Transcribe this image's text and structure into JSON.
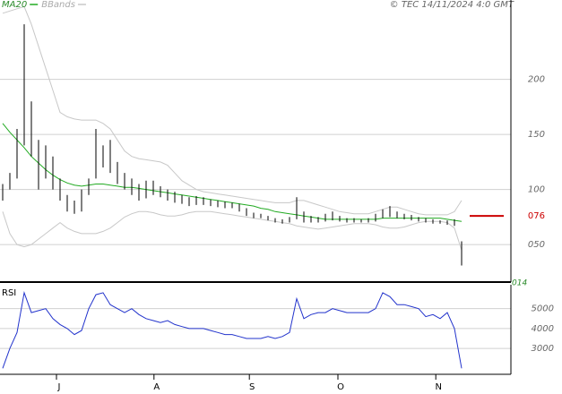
{
  "chart_data": [
    {
      "type": "hlbar",
      "copyright": "© TEC 14/11/2024 4:0 GMT",
      "x": [
        0,
        1,
        2,
        3,
        4,
        5,
        6,
        7,
        8,
        9,
        10,
        11,
        12,
        13,
        14,
        15,
        16,
        17,
        18,
        19,
        20,
        21,
        22,
        23,
        24,
        25,
        26,
        27,
        28,
        29,
        30,
        31,
        32,
        33,
        34,
        35,
        36,
        37,
        38,
        39,
        40,
        41,
        42,
        43,
        44,
        45,
        46,
        47,
        48,
        49,
        50,
        51,
        52,
        53,
        54,
        55,
        56,
        57,
        58,
        59,
        60,
        61,
        62,
        63,
        64
      ],
      "xlim": [
        -0.375,
        70.875
      ],
      "high": [
        1.05,
        1.15,
        1.55,
        2.5,
        1.8,
        1.45,
        1.4,
        1.3,
        1.1,
        0.95,
        0.9,
        1.0,
        1.1,
        1.55,
        1.4,
        1.45,
        1.25,
        1.15,
        1.1,
        1.05,
        1.08,
        1.08,
        1.03,
        1.0,
        0.98,
        0.95,
        0.93,
        0.94,
        0.93,
        0.91,
        0.9,
        0.89,
        0.88,
        0.87,
        0.83,
        0.79,
        0.78,
        0.76,
        0.74,
        0.73,
        0.75,
        0.93,
        0.8,
        0.76,
        0.75,
        0.78,
        0.8,
        0.76,
        0.74,
        0.74,
        0.73,
        0.74,
        0.78,
        0.82,
        0.85,
        0.8,
        0.78,
        0.77,
        0.75,
        0.74,
        0.73,
        0.72,
        0.72,
        0.73,
        0.53
      ],
      "low": [
        0.9,
        1.0,
        1.1,
        1.4,
        1.3,
        1.0,
        1.1,
        1.0,
        0.9,
        0.8,
        0.78,
        0.8,
        0.95,
        1.1,
        1.2,
        1.15,
        1.05,
        1.0,
        0.95,
        0.9,
        0.92,
        0.95,
        0.93,
        0.9,
        0.88,
        0.87,
        0.85,
        0.86,
        0.86,
        0.85,
        0.84,
        0.83,
        0.83,
        0.8,
        0.76,
        0.74,
        0.74,
        0.72,
        0.7,
        0.69,
        0.7,
        0.73,
        0.7,
        0.7,
        0.7,
        0.71,
        0.72,
        0.71,
        0.7,
        0.7,
        0.7,
        0.7,
        0.71,
        0.74,
        0.75,
        0.74,
        0.73,
        0.72,
        0.71,
        0.7,
        0.69,
        0.69,
        0.68,
        0.67,
        0.31
      ],
      "bar_color": "#000000",
      "series": [
        {
          "name": "MA20",
          "color": "#22aa22",
          "values": [
            1.6,
            1.52,
            1.45,
            1.38,
            1.3,
            1.24,
            1.18,
            1.13,
            1.09,
            1.06,
            1.04,
            1.03,
            1.04,
            1.05,
            1.05,
            1.04,
            1.03,
            1.02,
            1.02,
            1.01,
            1.0,
            0.99,
            0.98,
            0.97,
            0.96,
            0.95,
            0.94,
            0.93,
            0.92,
            0.91,
            0.9,
            0.89,
            0.88,
            0.87,
            0.86,
            0.85,
            0.83,
            0.82,
            0.8,
            0.79,
            0.78,
            0.77,
            0.76,
            0.75,
            0.74,
            0.73,
            0.73,
            0.73,
            0.73,
            0.73,
            0.73,
            0.73,
            0.73,
            0.74,
            0.74,
            0.74,
            0.74,
            0.74,
            0.74,
            0.74,
            0.74,
            0.74,
            0.73,
            0.72,
            0.71
          ]
        },
        {
          "name": "BBands",
          "color": "#c8c8c8",
          "values": [
            2.6,
            2.62,
            2.64,
            2.66,
            2.5,
            2.3,
            2.1,
            1.9,
            1.7,
            1.66,
            1.64,
            1.63,
            1.63,
            1.63,
            1.6,
            1.55,
            1.45,
            1.35,
            1.3,
            1.28,
            1.27,
            1.26,
            1.25,
            1.22,
            1.15,
            1.08,
            1.04,
            1.0,
            0.98,
            0.97,
            0.96,
            0.95,
            0.94,
            0.93,
            0.92,
            0.91,
            0.9,
            0.89,
            0.88,
            0.88,
            0.88,
            0.9,
            0.9,
            0.88,
            0.86,
            0.84,
            0.82,
            0.8,
            0.79,
            0.78,
            0.78,
            0.78,
            0.8,
            0.82,
            0.84,
            0.84,
            0.82,
            0.8,
            0.78,
            0.77,
            0.77,
            0.77,
            0.77,
            0.8,
            0.9
          ]
        },
        {
          "color": "#c8c8c8",
          "values": [
            0.8,
            0.6,
            0.5,
            0.48,
            0.5,
            0.55,
            0.6,
            0.65,
            0.7,
            0.65,
            0.62,
            0.6,
            0.6,
            0.6,
            0.62,
            0.65,
            0.7,
            0.75,
            0.78,
            0.8,
            0.8,
            0.79,
            0.77,
            0.76,
            0.76,
            0.77,
            0.79,
            0.8,
            0.8,
            0.8,
            0.79,
            0.78,
            0.77,
            0.76,
            0.75,
            0.74,
            0.73,
            0.72,
            0.71,
            0.7,
            0.69,
            0.67,
            0.66,
            0.65,
            0.64,
            0.65,
            0.66,
            0.67,
            0.68,
            0.69,
            0.69,
            0.69,
            0.68,
            0.66,
            0.65,
            0.65,
            0.66,
            0.68,
            0.7,
            0.71,
            0.71,
            0.71,
            0.7,
            0.65,
            0.45
          ]
        }
      ],
      "ylim": [
        0.16,
        2.72
      ],
      "yticks": [
        {
          "value": 2.0,
          "label": "200"
        },
        {
          "value": 1.5,
          "label": "150"
        },
        {
          "value": 1.0,
          "label": "100"
        },
        {
          "value": 0.5,
          "label": "050"
        }
      ],
      "grid": true,
      "target": {
        "value": 0.76,
        "label": "076",
        "color": "#cc0000"
      },
      "last": {
        "value": 0.14,
        "label": "014"
      }
    },
    {
      "type": "line",
      "title": "RSI",
      "color": "#2233cc",
      "values": [
        20,
        30,
        38,
        58,
        48,
        49,
        50,
        45,
        42,
        40,
        37,
        39,
        50,
        57,
        58,
        52,
        50,
        48,
        50,
        47,
        45,
        44,
        43,
        44,
        42,
        41,
        40,
        40,
        40,
        39,
        38,
        37,
        37,
        36,
        35,
        35,
        35,
        36,
        35,
        36,
        38,
        55,
        45,
        47,
        48,
        48,
        50,
        49,
        48,
        48,
        48,
        48,
        50,
        58,
        56,
        52,
        52,
        51,
        50,
        46,
        47,
        45,
        48,
        40,
        20
      ],
      "ylim": [
        17,
        62
      ],
      "yticks": [
        {
          "value": 50,
          "label": "5000"
        },
        {
          "value": 40,
          "label": "4000"
        },
        {
          "value": 30,
          "label": "3000"
        }
      ],
      "xticks": [
        {
          "value": 7.5,
          "label": "J"
        },
        {
          "value": 21.1,
          "label": "A"
        },
        {
          "value": 34.4,
          "label": "S"
        },
        {
          "value": 46.75,
          "label": "O"
        },
        {
          "value": 60.4,
          "label": "N"
        }
      ],
      "grid": true
    }
  ]
}
